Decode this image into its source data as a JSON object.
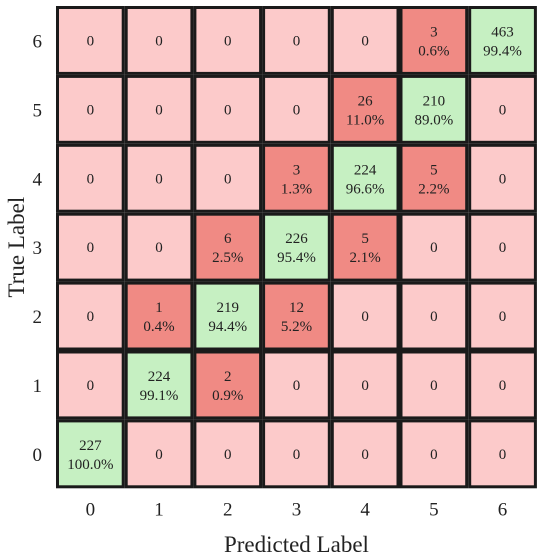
{
  "chart_data": {
    "type": "heatmap",
    "xlabel": "Predicted Label",
    "ylabel": "True Label",
    "x_categories": [
      "0",
      "1",
      "2",
      "3",
      "4",
      "5",
      "6"
    ],
    "y_categories": [
      "0",
      "1",
      "2",
      "3",
      "4",
      "5",
      "6"
    ],
    "cells": [
      {
        "true": 6,
        "pred": 0,
        "count": "0",
        "pct": ""
      },
      {
        "true": 6,
        "pred": 1,
        "count": "0",
        "pct": ""
      },
      {
        "true": 6,
        "pred": 2,
        "count": "0",
        "pct": ""
      },
      {
        "true": 6,
        "pred": 3,
        "count": "0",
        "pct": ""
      },
      {
        "true": 6,
        "pred": 4,
        "count": "0",
        "pct": ""
      },
      {
        "true": 6,
        "pred": 5,
        "count": "3",
        "pct": "0.6%"
      },
      {
        "true": 6,
        "pred": 6,
        "count": "463",
        "pct": "99.4%"
      },
      {
        "true": 5,
        "pred": 0,
        "count": "0",
        "pct": ""
      },
      {
        "true": 5,
        "pred": 1,
        "count": "0",
        "pct": ""
      },
      {
        "true": 5,
        "pred": 2,
        "count": "0",
        "pct": ""
      },
      {
        "true": 5,
        "pred": 3,
        "count": "0",
        "pct": ""
      },
      {
        "true": 5,
        "pred": 4,
        "count": "26",
        "pct": "11.0%"
      },
      {
        "true": 5,
        "pred": 5,
        "count": "210",
        "pct": "89.0%"
      },
      {
        "true": 5,
        "pred": 6,
        "count": "0",
        "pct": ""
      },
      {
        "true": 4,
        "pred": 0,
        "count": "0",
        "pct": ""
      },
      {
        "true": 4,
        "pred": 1,
        "count": "0",
        "pct": ""
      },
      {
        "true": 4,
        "pred": 2,
        "count": "0",
        "pct": ""
      },
      {
        "true": 4,
        "pred": 3,
        "count": "3",
        "pct": "1.3%"
      },
      {
        "true": 4,
        "pred": 4,
        "count": "224",
        "pct": "96.6%"
      },
      {
        "true": 4,
        "pred": 5,
        "count": "5",
        "pct": "2.2%"
      },
      {
        "true": 4,
        "pred": 6,
        "count": "0",
        "pct": ""
      },
      {
        "true": 3,
        "pred": 0,
        "count": "0",
        "pct": ""
      },
      {
        "true": 3,
        "pred": 1,
        "count": "0",
        "pct": ""
      },
      {
        "true": 3,
        "pred": 2,
        "count": "6",
        "pct": "2.5%"
      },
      {
        "true": 3,
        "pred": 3,
        "count": "226",
        "pct": "95.4%"
      },
      {
        "true": 3,
        "pred": 4,
        "count": "5",
        "pct": "2.1%"
      },
      {
        "true": 3,
        "pred": 5,
        "count": "0",
        "pct": ""
      },
      {
        "true": 3,
        "pred": 6,
        "count": "0",
        "pct": ""
      },
      {
        "true": 2,
        "pred": 0,
        "count": "0",
        "pct": ""
      },
      {
        "true": 2,
        "pred": 1,
        "count": "1",
        "pct": "0.4%"
      },
      {
        "true": 2,
        "pred": 2,
        "count": "219",
        "pct": "94.4%"
      },
      {
        "true": 2,
        "pred": 3,
        "count": "12",
        "pct": "5.2%"
      },
      {
        "true": 2,
        "pred": 4,
        "count": "0",
        "pct": ""
      },
      {
        "true": 2,
        "pred": 5,
        "count": "0",
        "pct": ""
      },
      {
        "true": 2,
        "pred": 6,
        "count": "0",
        "pct": ""
      },
      {
        "true": 1,
        "pred": 0,
        "count": "0",
        "pct": ""
      },
      {
        "true": 1,
        "pred": 1,
        "count": "224",
        "pct": "99.1%"
      },
      {
        "true": 1,
        "pred": 2,
        "count": "2",
        "pct": "0.9%"
      },
      {
        "true": 1,
        "pred": 3,
        "count": "0",
        "pct": ""
      },
      {
        "true": 1,
        "pred": 4,
        "count": "0",
        "pct": ""
      },
      {
        "true": 1,
        "pred": 5,
        "count": "0",
        "pct": ""
      },
      {
        "true": 1,
        "pred": 6,
        "count": "0",
        "pct": ""
      },
      {
        "true": 0,
        "pred": 0,
        "count": "227",
        "pct": "100.0%"
      },
      {
        "true": 0,
        "pred": 1,
        "count": "0",
        "pct": ""
      },
      {
        "true": 0,
        "pred": 2,
        "count": "0",
        "pct": ""
      },
      {
        "true": 0,
        "pred": 3,
        "count": "0",
        "pct": ""
      },
      {
        "true": 0,
        "pred": 4,
        "count": "0",
        "pct": ""
      },
      {
        "true": 0,
        "pred": 5,
        "count": "0",
        "pct": ""
      },
      {
        "true": 0,
        "pred": 6,
        "count": "0",
        "pct": ""
      }
    ]
  },
  "colors": {
    "correct": "#c6f0c2",
    "misclassified": "#f08a84",
    "zero": "#fccaca",
    "border": "#1a1a1a",
    "text": "#222222"
  }
}
